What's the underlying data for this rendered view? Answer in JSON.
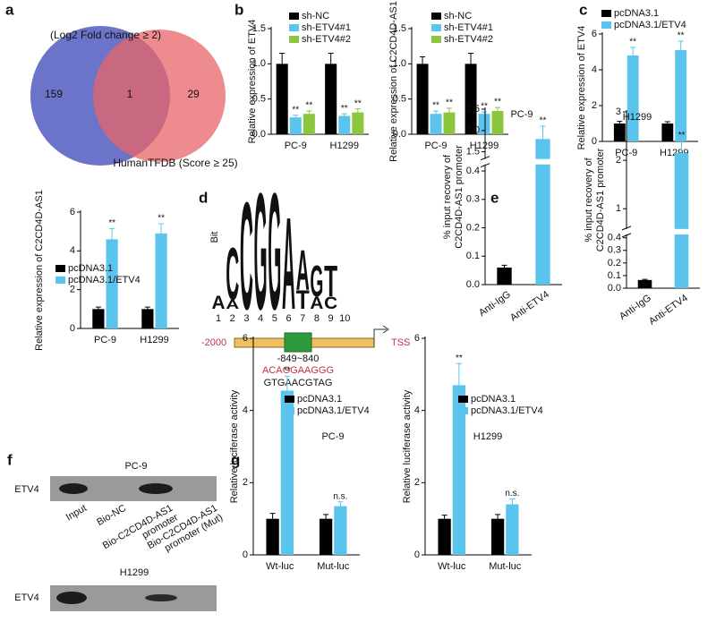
{
  "panel_labels": [
    "a",
    "b",
    "c",
    "d",
    "e",
    "f",
    "g"
  ],
  "chart_data": [
    {
      "type": "venn",
      "sets": [
        {
          "label": "(Log2 Fold change ≥ 2)",
          "color": "#6b74c8"
        },
        {
          "label": "HumanTFDB (Score ≥ 25)",
          "color": "#e8646a"
        }
      ],
      "values": [
        159,
        1,
        29
      ]
    },
    {
      "type": "bar",
      "ylabel": "Relative  expression of ETV4",
      "categories": [
        "PC-9",
        "H1299"
      ],
      "series": [
        {
          "name": "sh-NC",
          "color": "#000000",
          "values": [
            1.0,
            1.0
          ],
          "errors": [
            0.15,
            0.15
          ]
        },
        {
          "name": "sh-ETV4#1",
          "color": "#5bc4ec",
          "values": [
            0.24,
            0.26
          ],
          "errors": [
            0.03,
            0.03
          ],
          "labels": [
            "**",
            "**"
          ]
        },
        {
          "name": "sh-ETV4#2",
          "color": "#8cc63e",
          "values": [
            0.29,
            0.31
          ],
          "errors": [
            0.04,
            0.05
          ],
          "labels": [
            "**",
            "**"
          ]
        }
      ],
      "ylim": [
        0,
        1.5
      ],
      "yticks": [
        {
          "value": 0,
          "label": "0.0"
        },
        0.5,
        {
          "value": 1,
          "label": "1.0"
        },
        1.5
      ]
    },
    {
      "type": "bar",
      "ylabel": "Relative  expression of C2CD4D-AS1",
      "categories": [
        "PC-9",
        "H1299"
      ],
      "series": [
        {
          "name": "sh-NC",
          "color": "#000000",
          "values": [
            1.0,
            1.0
          ],
          "errors": [
            0.1,
            0.15
          ]
        },
        {
          "name": "sh-ETV4#1",
          "color": "#5bc4ec",
          "values": [
            0.29,
            0.29
          ],
          "errors": [
            0.04,
            0.03
          ],
          "labels": [
            "**",
            "**"
          ]
        },
        {
          "name": "sh-ETV4#2",
          "color": "#8cc63e",
          "values": [
            0.31,
            0.33
          ],
          "errors": [
            0.06,
            0.05
          ],
          "labels": [
            "**",
            "**"
          ]
        }
      ],
      "ylim": [
        0,
        1.5
      ],
      "yticks": [
        {
          "value": 0,
          "label": "0.0"
        },
        0.5,
        {
          "value": 1,
          "label": "1.0"
        },
        1.5
      ]
    },
    {
      "type": "bar",
      "ylabel": "Relative  expression of ETV4",
      "categories": [
        "PC-9",
        "H1299"
      ],
      "series": [
        {
          "name": "pcDNA3.1",
          "color": "#000000",
          "values": [
            1.0,
            1.0
          ],
          "errors": [
            0.12,
            0.1
          ]
        },
        {
          "name": "pcDNA3.1/ETV4",
          "color": "#5bc4ec",
          "values": [
            4.8,
            5.1
          ],
          "errors": [
            0.45,
            0.5
          ],
          "labels": [
            "**",
            "**"
          ]
        }
      ],
      "ylim": [
        0,
        6
      ],
      "yticks": [
        0,
        2,
        4,
        6
      ]
    },
    {
      "type": "bar",
      "ylabel": "Relative  expression of C2CD4D-AS1",
      "categories": [
        "PC-9",
        "H1299"
      ],
      "series": [
        {
          "name": "pcDNA3.1",
          "color": "#000000",
          "values": [
            1.0,
            1.0
          ],
          "errors": [
            0.1,
            0.1
          ]
        },
        {
          "name": "pcDNA3.1/ETV4",
          "color": "#5bc4ec",
          "values": [
            4.6,
            4.9
          ],
          "errors": [
            0.55,
            0.5
          ],
          "labels": [
            "**",
            "**"
          ]
        }
      ],
      "ylim": [
        0,
        6
      ],
      "yticks": [
        0,
        2,
        4,
        6
      ]
    },
    {
      "type": "logo",
      "ylabel": "Bit",
      "positions": [
        1,
        2,
        3,
        4,
        5,
        6,
        7,
        8,
        9,
        10
      ],
      "ylim": [
        0,
        2
      ],
      "colors": {
        "A": "#3aa94a",
        "C": "#2b6fc2",
        "G": "#f2a21b",
        "T": "#d6322f"
      },
      "stacks": [
        [
          {
            "letter": "A",
            "height": 0.22
          }
        ],
        [
          {
            "letter": "A",
            "height": 0.15
          },
          {
            "letter": "C",
            "height": 0.85
          }
        ],
        [
          {
            "letter": "C",
            "height": 1.75
          }
        ],
        [
          {
            "letter": "G",
            "height": 1.9
          }
        ],
        [
          {
            "letter": "G",
            "height": 1.9
          }
        ],
        [
          {
            "letter": "A",
            "height": 1.5
          }
        ],
        [
          {
            "letter": "T",
            "height": 0.3
          },
          {
            "letter": "A",
            "height": 0.65
          }
        ],
        [
          {
            "letter": "A",
            "height": 0.2
          },
          {
            "letter": "G",
            "height": 0.5
          }
        ],
        [
          {
            "letter": "C",
            "height": 0.2
          },
          {
            "letter": "T",
            "height": 0.5
          }
        ],
        []
      ]
    },
    {
      "type": "bar",
      "title": "PC-9",
      "ylabel": [
        "% input recovery of",
        "C2CD4D-AS1 promoter"
      ],
      "categories": [
        "Anti-IgG",
        "Anti-ETV4"
      ],
      "series": [
        {
          "values": [
            0.06,
            1.8
          ],
          "errors": [
            0.008,
            0.3
          ],
          "colors": [
            "#000000",
            "#5bc4ec"
          ],
          "labels": [
            null,
            "**"
          ]
        }
      ],
      "ylim": [
        0,
        2.5
      ],
      "ybreak": [
        0.42,
        1.35
      ],
      "yticks": [
        {
          "value": 0,
          "label": "0.0"
        },
        0.1,
        0.2,
        0.3,
        0.4,
        1.5,
        {
          "value": 2,
          "label": "2.0"
        },
        2.5
      ]
    },
    {
      "type": "bar",
      "title": "H1299",
      "ylabel": [
        "% input recovery of",
        "C2CD4D-AS1 promoter"
      ],
      "categories": [
        "Anti-IgG",
        "Anti-ETV4"
      ],
      "series": [
        {
          "values": [
            0.065,
            2.15
          ],
          "errors": [
            0.005,
            0.25
          ],
          "colors": [
            "#000000",
            "#5bc4ec"
          ],
          "labels": [
            null,
            "**"
          ]
        }
      ],
      "ylim": [
        0,
        3
      ],
      "ybreak": [
        0.42,
        0.6
      ],
      "yticks": [
        {
          "value": 0,
          "label": "0.0"
        },
        0.1,
        0.2,
        0.3,
        0.4,
        1,
        2,
        3
      ]
    },
    {
      "type": "bar",
      "title": "PC-9",
      "ylabel": "Relative luciferase activity",
      "categories": [
        "Wt-luc",
        "Mut-luc"
      ],
      "series": [
        {
          "name": "pcDNA3.1",
          "color": "#000000",
          "values": [
            1.0,
            1.0
          ],
          "errors": [
            0.15,
            0.12
          ]
        },
        {
          "name": "pcDNA3.1/ETV4",
          "color": "#5bc4ec",
          "values": [
            4.55,
            1.35
          ],
          "errors": [
            0.4,
            0.12
          ],
          "labels": [
            "**",
            "n.s."
          ]
        }
      ],
      "ylim": [
        0,
        6
      ],
      "yticks": [
        0,
        2,
        4,
        6
      ]
    },
    {
      "type": "bar",
      "title": "H1299",
      "ylabel": "Relative luciferase activity",
      "categories": [
        "Wt-luc",
        "Mut-luc"
      ],
      "series": [
        {
          "name": "pcDNA3.1",
          "color": "#000000",
          "values": [
            1.0,
            1.0
          ],
          "errors": [
            0.1,
            0.12
          ]
        },
        {
          "name": "pcDNA3.1/ETV4",
          "color": "#5bc4ec",
          "values": [
            4.7,
            1.4
          ],
          "errors": [
            0.6,
            0.15
          ],
          "labels": [
            "**",
            "n.s."
          ]
        }
      ],
      "ylim": [
        0,
        6
      ],
      "yticks": [
        0,
        2,
        4,
        6
      ]
    }
  ],
  "promoter": {
    "start": "-2000",
    "site": "-849~840",
    "sequence": "ACAGGAAGGG",
    "complement": "GTGAACGTAG",
    "tss": "TSS"
  },
  "blots": {
    "lanes": [
      [
        "Input"
      ],
      [
        "Bio-NC"
      ],
      [
        "Bio-C2CD4D-AS1",
        "promoter"
      ],
      [
        "Bio-C2CD4D-AS1",
        "promoter (Mut)"
      ]
    ],
    "panels": [
      {
        "title": "PC-9",
        "protein": "ETV4"
      },
      {
        "title": "H1299",
        "protein": "ETV4"
      }
    ]
  }
}
